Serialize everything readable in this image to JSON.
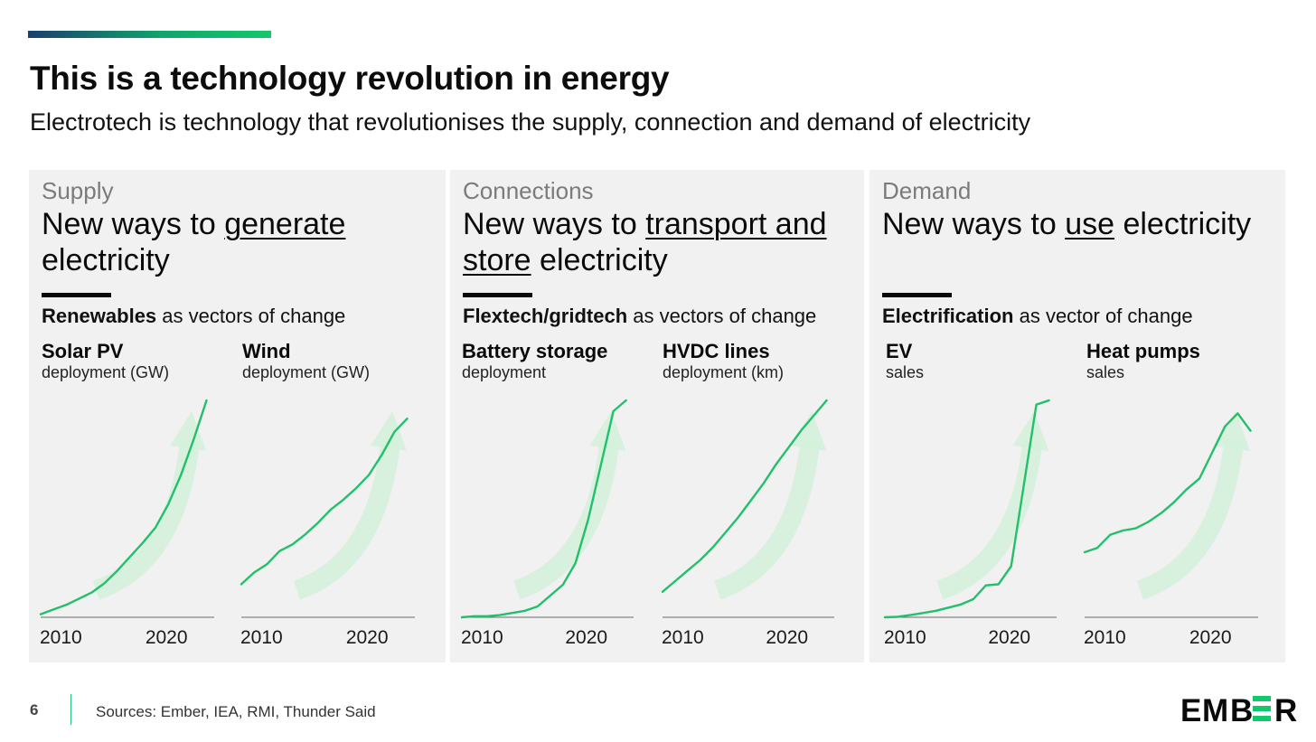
{
  "header": {
    "title": "This is a technology revolution in energy",
    "subtitle": "Electrotech is technology that revolutionises the supply, connection and demand of electricity"
  },
  "colors": {
    "accent": "#13c86c",
    "line": "#22c06a",
    "arrow": "#d4f1dc",
    "panel_bg": "#f1f1f1"
  },
  "panels": [
    {
      "category": "Supply",
      "headline_prefix": "New ways to ",
      "headline_underlined": "generate",
      "headline_suffix": " electricity",
      "vector_bold": "Renewables",
      "vector_rest": " as vectors of change"
    },
    {
      "category": "Connections",
      "headline_prefix": "New ways to ",
      "headline_underlined": "transport and store",
      "headline_suffix": " electricity",
      "vector_bold": "Flextech/gridtech",
      "vector_rest": " as vectors of change"
    },
    {
      "category": "Demand",
      "headline_prefix": "New ways to ",
      "headline_underlined": "use",
      "headline_suffix": " electricity",
      "vector_bold": "Electrification",
      "vector_rest": " as vector of change"
    }
  ],
  "chart_data": [
    {
      "type": "line",
      "title": "Solar PV",
      "unit": "deployment (GW)",
      "x": [
        2010,
        2011,
        2012,
        2013,
        2014,
        2015,
        2016,
        2017,
        2018,
        2019,
        2020,
        2021,
        2022,
        2023
      ],
      "values": [
        2,
        5,
        8,
        12,
        16,
        22,
        30,
        39,
        48,
        58,
        73,
        92,
        115,
        140
      ],
      "ylim": [
        0,
        140
      ],
      "xticks": [
        "2010",
        "2020"
      ]
    },
    {
      "type": "line",
      "title": "Wind",
      "unit": "deployment (GW)",
      "x": [
        2010,
        2011,
        2012,
        2013,
        2014,
        2015,
        2016,
        2017,
        2018,
        2019,
        2020,
        2021,
        2022,
        2023
      ],
      "values": [
        20,
        27,
        32,
        40,
        44,
        50,
        57,
        65,
        71,
        78,
        86,
        98,
        112,
        120
      ],
      "ylim": [
        0,
        131
      ],
      "xticks": [
        "2010",
        "2020"
      ]
    },
    {
      "type": "line",
      "title": "Battery storage",
      "unit": "deployment",
      "x": [
        2010,
        2011,
        2012,
        2013,
        2014,
        2015,
        2016,
        2017,
        2018,
        2019,
        2020,
        2021,
        2022,
        2023
      ],
      "values": [
        0,
        0.5,
        0.5,
        1,
        2,
        3,
        5,
        10,
        15,
        25,
        45,
        70,
        95,
        100
      ],
      "ylim": [
        0,
        100
      ],
      "xticks": [
        "2010",
        "2020"
      ]
    },
    {
      "type": "line",
      "title": "HVDC lines",
      "unit": "deployment (km)",
      "x": [
        2010,
        2011,
        2012,
        2013,
        2014,
        2015,
        2016,
        2017,
        2018,
        2019,
        2020,
        2021,
        2022,
        2023
      ],
      "values": [
        12,
        17,
        22,
        27,
        33,
        40,
        47,
        55,
        63,
        72,
        80,
        88,
        95,
        102
      ],
      "ylim": [
        0,
        102
      ],
      "xticks": [
        "2010",
        "2020"
      ]
    },
    {
      "type": "line",
      "title": "EV",
      "unit": "sales",
      "x": [
        2010,
        2011,
        2012,
        2013,
        2014,
        2015,
        2016,
        2017,
        2018,
        2019,
        2020,
        2021,
        2022,
        2023
      ],
      "values": [
        0,
        0.2,
        1,
        2,
        3,
        4.5,
        6,
        8.5,
        15,
        15.5,
        24,
        62,
        100,
        102
      ],
      "ylim": [
        0,
        102
      ],
      "xticks": [
        "2010",
        "2020"
      ]
    },
    {
      "type": "line",
      "title": "Heat pumps",
      "unit": "sales",
      "x": [
        2010,
        2011,
        2012,
        2013,
        2014,
        2015,
        2016,
        2017,
        2018,
        2019,
        2020,
        2021,
        2022,
        2023
      ],
      "values": [
        30,
        32,
        38,
        40,
        41,
        44,
        48,
        53,
        59,
        64,
        76,
        88,
        94,
        86
      ],
      "ylim": [
        0,
        100
      ],
      "xticks": [
        "2010",
        "2020"
      ]
    }
  ],
  "footer": {
    "page_number": "6",
    "sources": "Sources: Ember, IEA, RMI, Thunder Said",
    "logo_text": "EMBER"
  }
}
